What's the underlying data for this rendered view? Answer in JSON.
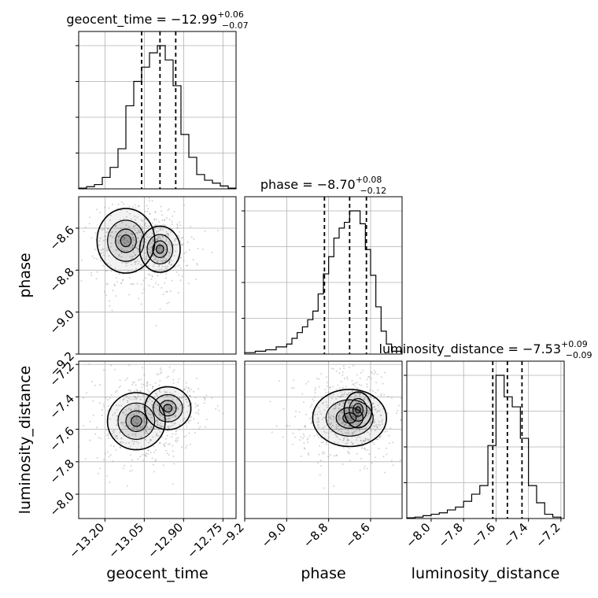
{
  "chart_data": {
    "type": "corner",
    "parameters": [
      {
        "name": "geocent_time",
        "title": {
          "main": "geocent_time = −12.99",
          "plus": "+0.06",
          "minus": "−0.07"
        },
        "range": [
          -13.3,
          -12.7
        ],
        "ticks": [
          -13.2,
          -13.05,
          -12.9,
          -12.75
        ],
        "tick_labels": [
          "−13.20",
          "−13.05",
          "−12.90",
          "−12.75"
        ],
        "quantiles": [
          -13.06,
          -12.99,
          -12.93
        ],
        "hist_bins": [
          -13.3,
          -13.27,
          -13.24,
          -13.21,
          -13.18,
          -13.15,
          -13.12,
          -13.09,
          -13.06,
          -13.03,
          -13.0,
          -12.97,
          -12.94,
          -12.91,
          -12.88,
          -12.85,
          -12.82,
          -12.79,
          -12.76,
          -12.73,
          -12.7
        ],
        "hist_counts": [
          0.5,
          1.5,
          3,
          8,
          15,
          28,
          58,
          75,
          85,
          95,
          100,
          90,
          72,
          38,
          22,
          10,
          6,
          4,
          2,
          0.5
        ]
      },
      {
        "name": "phase",
        "title": {
          "main": "phase = −8.70",
          "plus": "+0.08",
          "minus": "−0.12"
        },
        "range": [
          -9.2,
          -8.45
        ],
        "ticks": [
          -9.2,
          -9.0,
          -8.8,
          -8.6
        ],
        "tick_labels": [
          "−9.2",
          "−9.0",
          "−8.8",
          "−8.6"
        ],
        "quantiles": [
          -8.82,
          -8.7,
          -8.62
        ],
        "hist_bins": [
          -9.2,
          -9.15,
          -9.1,
          -9.05,
          -9.0,
          -8.975,
          -8.95,
          -8.925,
          -8.9,
          -8.875,
          -8.85,
          -8.825,
          -8.8,
          -8.775,
          -8.75,
          -8.725,
          -8.7,
          -8.675,
          -8.65,
          -8.625,
          -8.6,
          -8.575,
          -8.55,
          -8.525,
          -8.5,
          -8.45
        ],
        "hist_counts": [
          1,
          2,
          3,
          5,
          7,
          11,
          15,
          19,
          24,
          30,
          42,
          56,
          68,
          81,
          88,
          92,
          100,
          100,
          91,
          73,
          55,
          33,
          16,
          7,
          2
        ]
      },
      {
        "name": "luminosity_distance",
        "title": {
          "main": "luminosity_distance = −7.53",
          "plus": "+0.09",
          "minus": "−0.09"
        },
        "range": [
          -8.15,
          -7.18
        ],
        "ticks": [
          -8.0,
          -7.8,
          -7.6,
          -7.4,
          -7.2
        ],
        "tick_labels": [
          "−8.0",
          "−7.8",
          "−7.6",
          "−7.4",
          "−7.2"
        ],
        "quantiles": [
          -7.62,
          -7.53,
          -7.44
        ],
        "hist_bins": [
          -8.15,
          -8.1,
          -8.05,
          -8.0,
          -7.95,
          -7.9,
          -7.85,
          -7.8,
          -7.75,
          -7.7,
          -7.65,
          -7.6,
          -7.55,
          -7.5,
          -7.45,
          -7.4,
          -7.35,
          -7.3,
          -7.25,
          -7.2
        ],
        "hist_counts": [
          0.5,
          1,
          2,
          3,
          4,
          6,
          8,
          12,
          17,
          23,
          51,
          100,
          85,
          78,
          56,
          23,
          11,
          3,
          1
        ]
      }
    ],
    "pair_modes": {
      "1,0": [
        {
          "x": -13.12,
          "y": -8.66,
          "sx": 0.05,
          "sy": 0.07,
          "w": 0.45
        },
        {
          "x": -12.99,
          "y": -8.7,
          "sx": 0.035,
          "sy": 0.05,
          "w": 0.55
        }
      ],
      "2,0": [
        {
          "x": -13.08,
          "y": -7.55,
          "sx": 0.05,
          "sy": 0.08,
          "w": 0.6
        },
        {
          "x": -12.96,
          "y": -7.47,
          "sx": 0.04,
          "sy": 0.06,
          "w": 0.4
        }
      ],
      "2,1": [
        {
          "x": -8.7,
          "y": -7.53,
          "sx": 0.08,
          "sy": 0.08,
          "w": 0.7
        },
        {
          "x": -8.66,
          "y": -7.48,
          "sx": 0.03,
          "sy": 0.05,
          "w": 0.3
        }
      ]
    },
    "grid": true,
    "colors": {
      "line": "#000000",
      "grid": "#b0b0b0",
      "points": "#808080"
    }
  }
}
